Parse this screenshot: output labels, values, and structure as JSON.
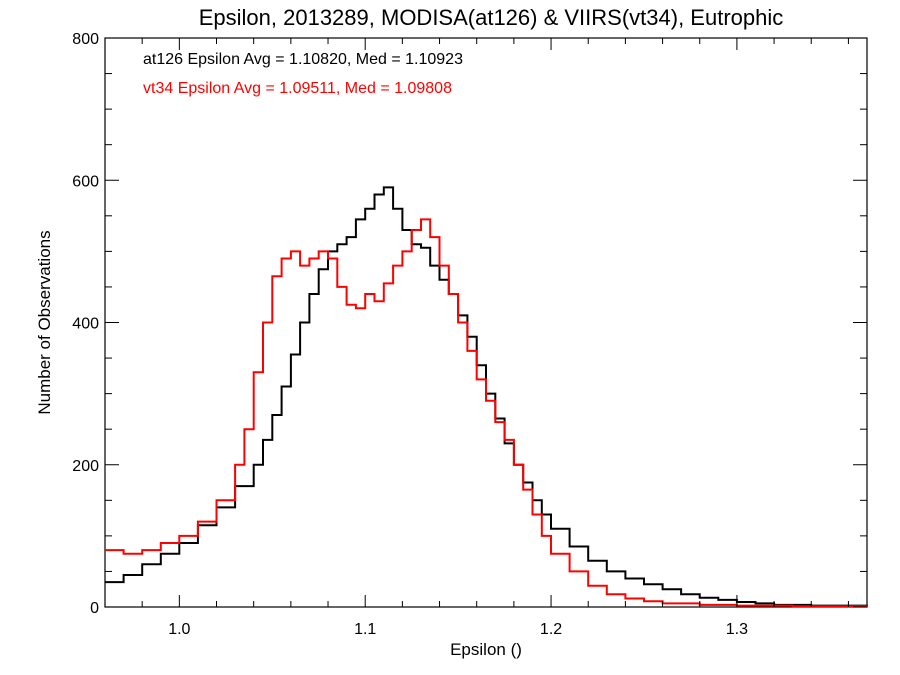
{
  "chart_data": {
    "type": "line",
    "step": true,
    "title": "Epsilon, 2013289, MODISA(at126) & VIIRS(vt34), Eutrophic",
    "xlabel": "Epsilon ()",
    "ylabel": "Number of Observations",
    "xlim": [
      0.96,
      1.37
    ],
    "ylim": [
      0,
      800
    ],
    "xticks": [
      1.0,
      1.1,
      1.2,
      1.3
    ],
    "xtick_labels": [
      "1.0",
      "1.1",
      "1.2",
      "1.3"
    ],
    "yticks": [
      0,
      200,
      400,
      600,
      800
    ],
    "ytick_labels": [
      "0",
      "200",
      "400",
      "600",
      "800"
    ],
    "grid": false,
    "annotations": [
      {
        "text": "at126 Epsilon Avg = 1.10820, Med = 1.10923",
        "color": "#000000"
      },
      {
        "text": "vt34 Epsilon Avg = 1.09511, Med = 1.09808",
        "color": "#ff0000"
      }
    ],
    "series": [
      {
        "color": "#000000",
        "x": [
          0.96,
          0.97,
          0.98,
          0.99,
          1.0,
          1.01,
          1.02,
          1.03,
          1.04,
          1.045,
          1.05,
          1.055,
          1.06,
          1.065,
          1.07,
          1.075,
          1.08,
          1.085,
          1.09,
          1.095,
          1.1,
          1.105,
          1.11,
          1.115,
          1.12,
          1.125,
          1.13,
          1.135,
          1.14,
          1.145,
          1.15,
          1.155,
          1.16,
          1.165,
          1.17,
          1.175,
          1.18,
          1.185,
          1.19,
          1.195,
          1.2,
          1.21,
          1.22,
          1.23,
          1.24,
          1.25,
          1.26,
          1.27,
          1.28,
          1.29,
          1.3,
          1.31,
          1.32,
          1.34,
          1.37
        ],
        "y": [
          35,
          45,
          60,
          75,
          90,
          115,
          140,
          170,
          200,
          235,
          270,
          310,
          355,
          400,
          440,
          475,
          500,
          510,
          520,
          545,
          560,
          580,
          590,
          560,
          530,
          510,
          505,
          480,
          460,
          440,
          410,
          380,
          340,
          300,
          265,
          230,
          200,
          175,
          150,
          130,
          110,
          85,
          65,
          50,
          40,
          32,
          25,
          18,
          13,
          10,
          7,
          5,
          3,
          2,
          0
        ]
      },
      {
        "color": "#ff0000",
        "x": [
          0.96,
          0.97,
          0.98,
          0.99,
          1.0,
          1.01,
          1.02,
          1.03,
          1.035,
          1.04,
          1.045,
          1.05,
          1.055,
          1.06,
          1.065,
          1.07,
          1.075,
          1.08,
          1.085,
          1.09,
          1.095,
          1.1,
          1.105,
          1.11,
          1.115,
          1.12,
          1.125,
          1.13,
          1.135,
          1.14,
          1.145,
          1.15,
          1.155,
          1.16,
          1.165,
          1.17,
          1.175,
          1.18,
          1.185,
          1.19,
          1.195,
          1.2,
          1.21,
          1.22,
          1.23,
          1.24,
          1.25,
          1.26,
          1.28,
          1.3,
          1.33,
          1.37
        ],
        "y": [
          80,
          75,
          80,
          90,
          100,
          120,
          150,
          200,
          250,
          330,
          400,
          465,
          490,
          500,
          480,
          490,
          500,
          490,
          450,
          425,
          420,
          440,
          430,
          455,
          480,
          500,
          530,
          545,
          520,
          480,
          440,
          400,
          360,
          320,
          290,
          260,
          235,
          200,
          165,
          130,
          100,
          75,
          50,
          30,
          18,
          12,
          8,
          5,
          3,
          2,
          1,
          0
        ]
      }
    ]
  }
}
